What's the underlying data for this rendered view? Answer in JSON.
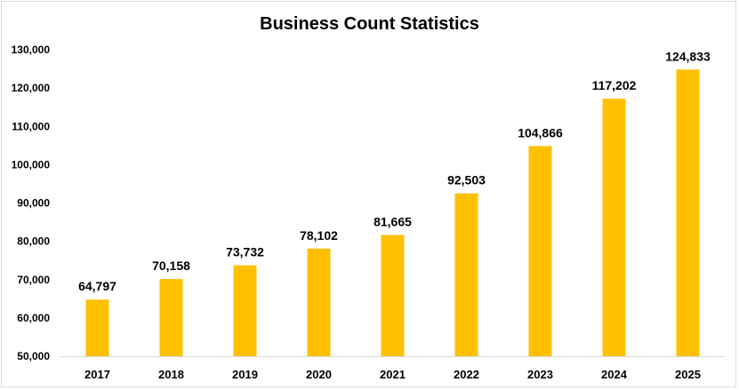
{
  "chart_data": {
    "type": "bar",
    "title": "Business Count Statistics",
    "xlabel": "",
    "ylabel": "",
    "categories": [
      "2017",
      "2018",
      "2019",
      "2020",
      "2021",
      "2022",
      "2023",
      "2024",
      "2025"
    ],
    "values": [
      64797,
      70158,
      73732,
      78102,
      81665,
      92503,
      104866,
      117202,
      124833
    ],
    "data_labels": [
      "64,797",
      "70,158",
      "73,732",
      "78,102",
      "81,665",
      "92,503",
      "104,866",
      "117,202",
      "124,833"
    ],
    "ylim": [
      50000,
      130000
    ],
    "yticks": [
      50000,
      60000,
      70000,
      80000,
      90000,
      100000,
      110000,
      120000,
      130000
    ],
    "ytick_labels": [
      "50,000",
      "60,000",
      "70,000",
      "80,000",
      "90,000",
      "100,000",
      "110,000",
      "120,000",
      "130,000"
    ],
    "grid": false,
    "legend": "none",
    "bar_color": "#FFC000",
    "axis_color": "#d9d9d9"
  }
}
